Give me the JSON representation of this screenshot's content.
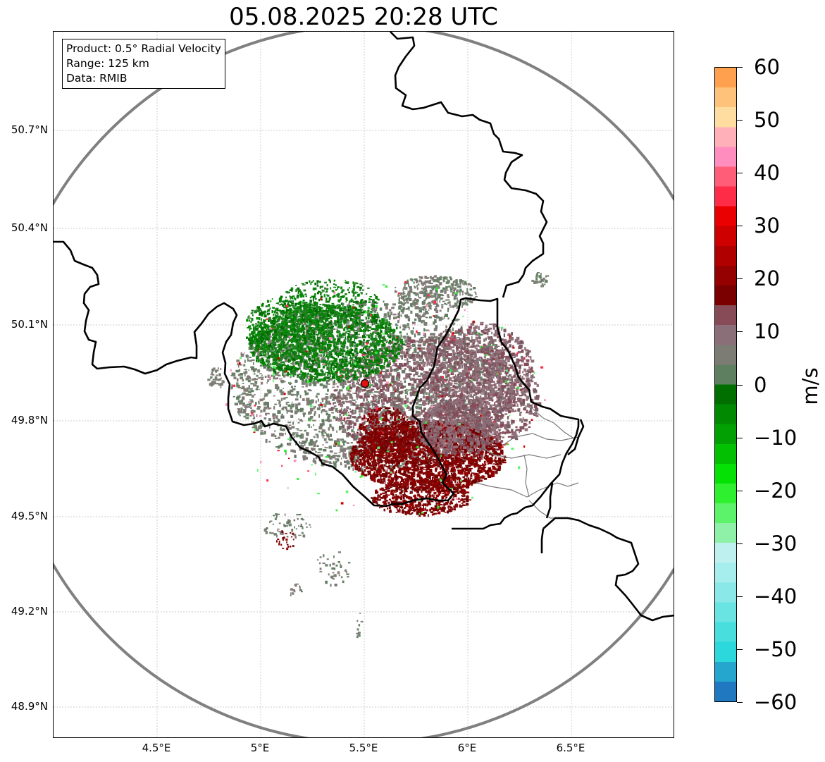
{
  "title": "05.08.2025 20:28 UTC",
  "info": {
    "product": "Product: 0.5° Radial Velocity",
    "range": "Range: 125 km",
    "data": "Data: RMIB"
  },
  "axes": {
    "x_ticks": [
      "4.5°E",
      "5°E",
      "5.5°E",
      "6°E",
      "6.5°E"
    ],
    "y_ticks": [
      "50.7°N",
      "50.4°N",
      "50.1°N",
      "49.8°N",
      "49.5°N",
      "49.2°N",
      "48.9°N"
    ],
    "lon_range": [
      4.0,
      7.0
    ],
    "lat_range": [
      48.8,
      51.0
    ]
  },
  "radar_site": {
    "lon": 5.505,
    "lat": 49.915,
    "range_km": 125
  },
  "colorbar": {
    "label": "m/s",
    "min": -60,
    "max": 60,
    "ticks": [
      "60",
      "50",
      "40",
      "30",
      "20",
      "10",
      "0",
      "−10",
      "−20",
      "−30",
      "−40",
      "−50",
      "−60"
    ],
    "colors": [
      "#1f78c0",
      "#25a6cf",
      "#2cd8dc",
      "#48dede",
      "#6ae3e3",
      "#8ae8e8",
      "#a6eded",
      "#bff0f0",
      "#8ff0a8",
      "#5cf36a",
      "#2ef02e",
      "#05e005",
      "#03c003",
      "#02a002",
      "#018a01",
      "#006f00",
      "#5f8060",
      "#7c7c74",
      "#8a6f78",
      "#864b57",
      "#7a0000",
      "#950000",
      "#b00000",
      "#cf0000",
      "#ea0000",
      "#ff2c48",
      "#ff5d78",
      "#ff8dbd",
      "#ffb0b8",
      "#ffdca0",
      "#ffc27a",
      "#ffa04f"
    ]
  }
}
